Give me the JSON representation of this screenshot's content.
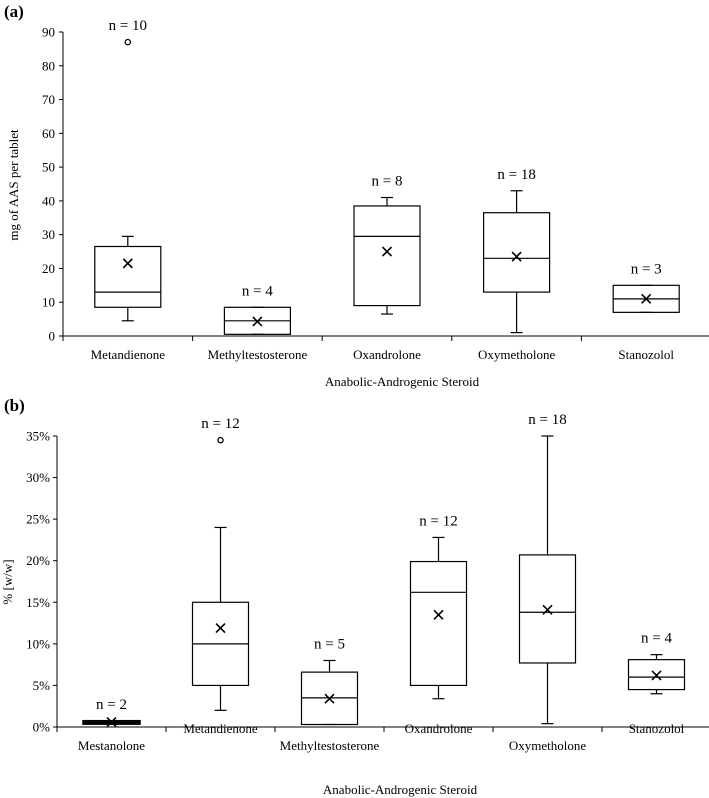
{
  "chart_data": [
    {
      "type": "box",
      "panel_label": "(a)",
      "xlabel": "Anabolic-Androgenic Steroid",
      "ylabel": "mg of AAS per tablet",
      "ylim": [
        0,
        90
      ],
      "yticks": [
        "0",
        "10",
        "20",
        "30",
        "40",
        "50",
        "60",
        "70",
        "80",
        "90"
      ],
      "grid": false,
      "categories": [
        "Metandienone",
        "Methyltestosterone",
        "Oxandrolone",
        "Oxymetholone",
        "Stanozolol"
      ],
      "n_labels": [
        "n = 10",
        "n = 4",
        "n = 8",
        "n = 18",
        "n = 3"
      ],
      "boxes": [
        {
          "min": 4.5,
          "q1": 8.5,
          "median": 13,
          "q3": 26.5,
          "max": 29.5,
          "mean": 21.5,
          "outliers": [
            87
          ]
        },
        {
          "min": 0.5,
          "q1": 0.5,
          "median": 4.5,
          "q3": 8.5,
          "max": 8.5,
          "mean": 4.3,
          "outliers": []
        },
        {
          "min": 6.5,
          "q1": 9,
          "median": 29.5,
          "q3": 38.5,
          "max": 41,
          "mean": 25,
          "outliers": []
        },
        {
          "min": 1,
          "q1": 13,
          "median": 23,
          "q3": 36.5,
          "max": 43,
          "mean": 23.5,
          "outliers": []
        },
        {
          "min": 7,
          "q1": 7,
          "median": 11,
          "q3": 15,
          "max": 15,
          "mean": 11,
          "outliers": []
        }
      ]
    },
    {
      "type": "box",
      "panel_label": "(b)",
      "xlabel": "Anabolic-Androgenic Steroid",
      "ylabel": "% [w/w]",
      "ylim": [
        0,
        35
      ],
      "yticks": [
        "0%",
        "5%",
        "10%",
        "15%",
        "20%",
        "25%",
        "30%",
        "35%"
      ],
      "grid": false,
      "categories": [
        "Mestanolone",
        "Metandienone",
        "Methyltestosterone",
        "Oxandrolone",
        "Oxymetholone",
        "Stanozolol"
      ],
      "n_labels": [
        "n = 2",
        "n = 12",
        "n = 5",
        "n = 12",
        "n = 18",
        "n = 4"
      ],
      "boxes": [
        {
          "min": 0.4,
          "q1": 0.4,
          "median": 0.6,
          "q3": 0.7,
          "max": 0.7,
          "mean": 0.6,
          "outliers": []
        },
        {
          "min": 2,
          "q1": 5,
          "median": 10,
          "q3": 15,
          "max": 24,
          "mean": 11.9,
          "outliers": [
            34.5
          ]
        },
        {
          "min": 0.3,
          "q1": 0.3,
          "median": 3.5,
          "q3": 6.6,
          "max": 8,
          "mean": 3.4,
          "outliers": []
        },
        {
          "min": 3.4,
          "q1": 5,
          "median": 16.2,
          "q3": 19.9,
          "max": 22.8,
          "mean": 13.5,
          "outliers": []
        },
        {
          "min": 0.4,
          "q1": 7.7,
          "median": 13.8,
          "q3": 20.7,
          "max": 35,
          "mean": 14.1,
          "outliers": []
        },
        {
          "min": 4,
          "q1": 4.5,
          "median": 6,
          "q3": 8.1,
          "max": 8.7,
          "mean": 6.2,
          "outliers": []
        }
      ]
    }
  ]
}
